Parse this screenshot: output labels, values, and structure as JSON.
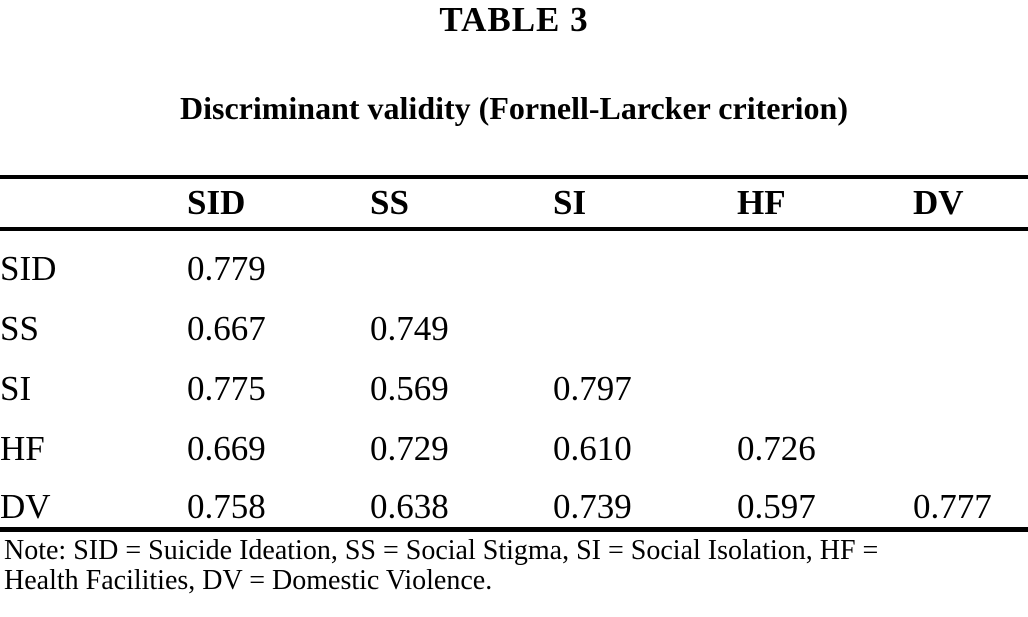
{
  "heading": {
    "table_number": "TABLE 3",
    "caption": "Discriminant validity (Fornell-Larcker criterion)"
  },
  "table": {
    "columns": [
      "",
      "SID",
      "SS",
      "SI",
      "HF",
      "DV"
    ],
    "rows": [
      {
        "label": "SID",
        "values": [
          "0.779",
          "",
          "",
          "",
          ""
        ]
      },
      {
        "label": "SS",
        "values": [
          "0.667",
          "0.749",
          "",
          "",
          ""
        ]
      },
      {
        "label": "SI",
        "values": [
          "0.775",
          "0.569",
          "0.797",
          "",
          ""
        ]
      },
      {
        "label": "HF",
        "values": [
          "0.669",
          "0.729",
          "0.610",
          "0.726",
          ""
        ]
      },
      {
        "label": "DV",
        "values": [
          "0.758",
          "0.638",
          "0.739",
          "0.597",
          "0.777"
        ]
      }
    ]
  },
  "note": {
    "lines": [
      "Note: SID = Suicide Ideation, SS = Social Stigma, SI = Social Isolation, HF =",
      "Health Facilities, DV = Domestic Violence."
    ]
  }
}
